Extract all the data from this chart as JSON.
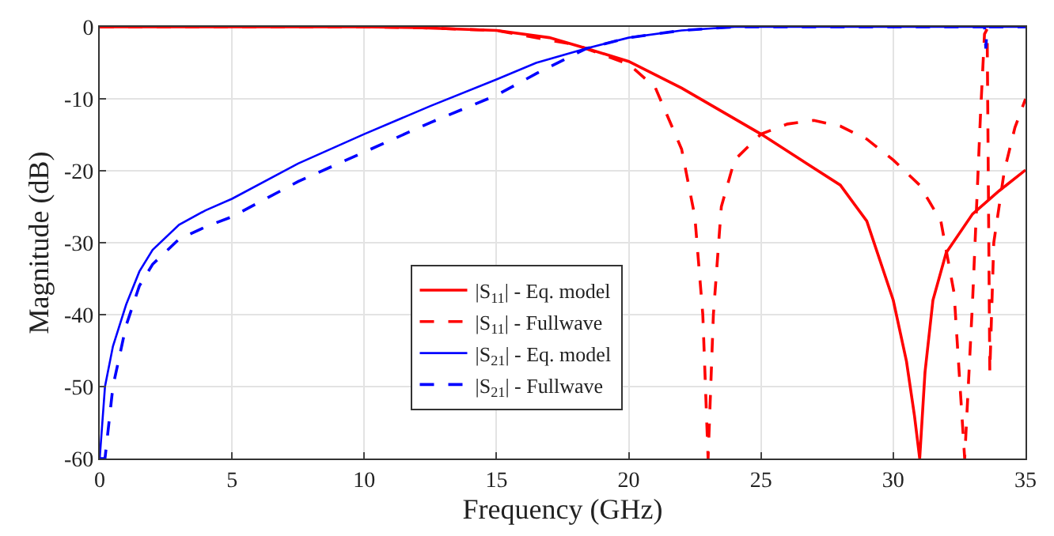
{
  "chart_data": {
    "type": "line",
    "xlabel": "Frequency (GHz)",
    "ylabel": "Magnitude (dB)",
    "xlim": [
      0,
      35
    ],
    "xticks": [
      0,
      5,
      10,
      15,
      20,
      25,
      30,
      35
    ],
    "ylim": [
      -60,
      0
    ],
    "yticks": [
      -60,
      -50,
      -40,
      -30,
      -20,
      -10,
      0
    ],
    "grid": true,
    "legend": "center",
    "marker": "none",
    "series": [
      {
        "name": "|S$_{11}$| - Eq. model",
        "color": "#ff0000",
        "line_style": "solid",
        "x": [
          0,
          5,
          10,
          12,
          15,
          17,
          18.4,
          20,
          22,
          25,
          28,
          29,
          30,
          30.5,
          30.8,
          31,
          31.2,
          31.5,
          32,
          33,
          34,
          35
        ],
        "values": [
          0,
          0,
          0,
          -0.1,
          -0.5,
          -1.5,
          -3,
          -4.8,
          -8.5,
          -14.9,
          -22,
          -27,
          -38,
          -46.5,
          -54,
          -60,
          -48,
          -38,
          -31.4,
          -26,
          -22.8,
          -19.9
        ]
      },
      {
        "name": "|S$_{11}$| - Fullwave",
        "color": "#ff0000",
        "line_style": "dashed",
        "x": [
          0,
          5,
          10,
          12,
          15,
          18,
          20,
          21,
          22,
          22.5,
          22.8,
          23,
          23.2,
          23.5,
          24,
          25,
          26,
          27,
          28,
          29,
          30,
          31,
          31.8,
          32.3,
          32.7,
          33,
          33.3,
          33.45,
          33.55,
          33.65,
          33.8,
          34.2,
          34.6,
          35
        ],
        "values": [
          0,
          0,
          0,
          -0.1,
          -0.5,
          -2.5,
          -5.2,
          -8.4,
          -17,
          -26.4,
          -40,
          -60,
          -40,
          -25,
          -18.5,
          -14.9,
          -13.5,
          -13,
          -13.8,
          -15.6,
          -18.5,
          -22,
          -27,
          -37,
          -60,
          -38,
          -12,
          -1,
          -0.3,
          -48,
          -30,
          -20,
          -14,
          -10
        ]
      },
      {
        "name": "|S$_{21}$| - Eq. model",
        "color": "#0000ff",
        "line_style": "solid",
        "x": [
          0,
          0.2,
          0.5,
          1,
          1.5,
          2,
          3,
          4,
          5,
          7.5,
          10,
          12.5,
          15,
          16.5,
          18.4,
          20,
          22,
          24,
          30,
          35
        ],
        "values": [
          -60,
          -50,
          -44.4,
          -38.6,
          -34,
          -31,
          -27.5,
          -25.5,
          -23.9,
          -19,
          -14.9,
          -11,
          -7.3,
          -5,
          -3,
          -1.5,
          -0.5,
          0,
          0,
          0
        ]
      },
      {
        "name": "|S$_{21}$| - Fullwave",
        "color": "#0000ff",
        "line_style": "dashed",
        "x": [
          0,
          0.2,
          0.5,
          1,
          1.5,
          2,
          3,
          4,
          5,
          7.5,
          10,
          12.5,
          15,
          16.5,
          18.4,
          20,
          22,
          24,
          30,
          33.45,
          33.5,
          33.55,
          35
        ],
        "values": [
          -60,
          -60,
          -50,
          -41.5,
          -36,
          -33,
          -29.5,
          -27.8,
          -26.4,
          -21.5,
          -17.4,
          -13.3,
          -9.5,
          -6.5,
          -3,
          -1.5,
          -0.5,
          0,
          0,
          0,
          -3,
          0,
          0
        ]
      }
    ]
  }
}
